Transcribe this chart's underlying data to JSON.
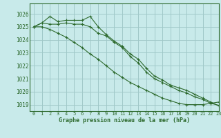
{
  "title": "Graphe pression niveau de la mer (hPa)",
  "background_color": "#c8eaea",
  "grid_color": "#a0c8c8",
  "line_color": "#2d6a2d",
  "xlim": [
    -0.5,
    23
  ],
  "ylim": [
    1018.5,
    1026.8
  ],
  "yticks": [
    1019,
    1020,
    1021,
    1022,
    1023,
    1024,
    1025,
    1026
  ],
  "xticks": [
    0,
    1,
    2,
    3,
    4,
    5,
    6,
    7,
    8,
    9,
    10,
    11,
    12,
    13,
    14,
    15,
    16,
    17,
    18,
    19,
    20,
    21,
    22,
    23
  ],
  "hours": [
    0,
    1,
    2,
    3,
    4,
    5,
    6,
    7,
    8,
    9,
    10,
    11,
    12,
    13,
    14,
    15,
    16,
    17,
    18,
    19,
    20,
    21,
    22,
    23
  ],
  "line1": [
    1025.0,
    1025.3,
    1025.8,
    1025.4,
    1025.5,
    1025.5,
    1025.5,
    1025.8,
    1025.0,
    1024.4,
    1023.9,
    1023.5,
    1022.9,
    1022.5,
    1021.8,
    1021.2,
    1020.9,
    1020.5,
    1020.3,
    1020.1,
    1019.8,
    1019.5,
    1019.2,
    1018.9
  ],
  "line2": [
    1025.0,
    1025.3,
    1025.2,
    1025.2,
    1025.3,
    1025.2,
    1025.2,
    1025.0,
    1024.5,
    1024.3,
    1023.8,
    1023.4,
    1022.7,
    1022.2,
    1021.5,
    1021.0,
    1020.7,
    1020.4,
    1020.1,
    1019.9,
    1019.6,
    1019.4,
    1019.1,
    1018.95
  ],
  "line3": [
    1025.0,
    1025.0,
    1024.8,
    1024.5,
    1024.2,
    1023.8,
    1023.4,
    1022.9,
    1022.5,
    1022.0,
    1021.5,
    1021.1,
    1020.7,
    1020.4,
    1020.1,
    1019.8,
    1019.5,
    1019.3,
    1019.1,
    1019.0,
    1019.0,
    1019.0,
    1019.1,
    1019.2
  ],
  "figsize": [
    3.2,
    2.0
  ],
  "dpi": 100
}
